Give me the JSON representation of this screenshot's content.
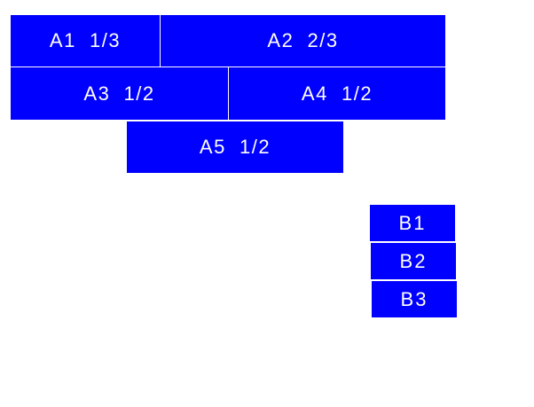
{
  "colors": {
    "box": "#0000ff",
    "text": "#ffffff",
    "background": "#ffffff"
  },
  "group_a": [
    "A1  1/3",
    "A2  2/3",
    "A3  1/2",
    "A4  1/2",
    "A5  1/2"
  ],
  "group_b": [
    "B1",
    "B2",
    "B3"
  ]
}
